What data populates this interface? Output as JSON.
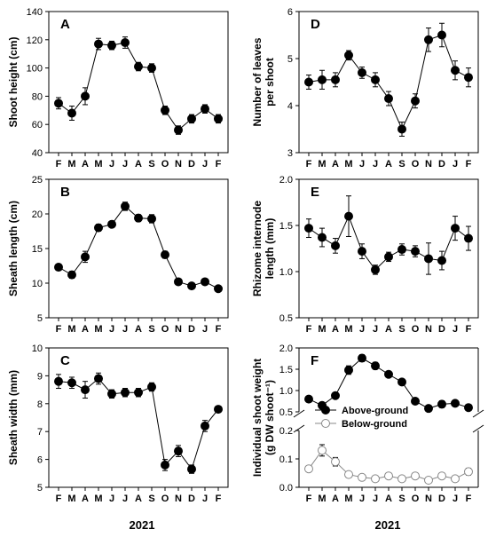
{
  "figure": {
    "year_left": "2021",
    "year_right": "2021"
  },
  "chart_data": [
    {
      "type": "line",
      "panel": "A",
      "ylabel": "Shoot height (cm)",
      "categories": [
        "F",
        "M",
        "A",
        "M",
        "J",
        "J",
        "A",
        "S",
        "O",
        "N",
        "D",
        "J",
        "F"
      ],
      "ylim": [
        40,
        140
      ],
      "yticks": [
        40,
        60,
        80,
        100,
        120,
        140
      ],
      "series": [
        {
          "values": [
            75,
            68,
            80,
            117,
            116,
            118,
            101,
            100,
            70,
            56,
            64,
            71,
            64
          ],
          "errors": [
            4,
            5,
            6,
            4,
            3,
            4,
            3,
            3,
            3,
            3,
            3,
            3,
            3
          ],
          "marker": "filled"
        }
      ]
    },
    {
      "type": "line",
      "panel": "B",
      "ylabel": "Sheath length (cm)",
      "categories": [
        "F",
        "M",
        "A",
        "M",
        "J",
        "J",
        "A",
        "S",
        "O",
        "N",
        "D",
        "J",
        "F"
      ],
      "ylim": [
        5,
        25
      ],
      "yticks": [
        5,
        10,
        15,
        20,
        25
      ],
      "series": [
        {
          "values": [
            12.3,
            11.2,
            13.8,
            18,
            18.5,
            21.1,
            19.4,
            19.3,
            14.1,
            10.2,
            9.6,
            10.2,
            9.2
          ],
          "errors": [
            0.4,
            0.5,
            0.8,
            0.5,
            0.4,
            0.6,
            0.5,
            0.6,
            0.5,
            0.4,
            0.4,
            0.4,
            0.4
          ],
          "marker": "filled"
        }
      ]
    },
    {
      "type": "line",
      "panel": "C",
      "ylabel": "Sheath width (mm)",
      "categories": [
        "F",
        "M",
        "A",
        "M",
        "J",
        "J",
        "A",
        "S",
        "O",
        "N",
        "D",
        "J",
        "F"
      ],
      "ylim": [
        5,
        10
      ],
      "yticks": [
        5,
        6,
        7,
        8,
        9,
        10
      ],
      "series": [
        {
          "values": [
            8.8,
            8.75,
            8.5,
            8.9,
            8.35,
            8.4,
            8.4,
            8.6,
            5.8,
            6.3,
            5.65,
            7.2,
            7.8
          ],
          "errors": [
            0.25,
            0.2,
            0.3,
            0.2,
            0.15,
            0.15,
            0.15,
            0.15,
            0.2,
            0.2,
            0.15,
            0.2,
            0.1
          ],
          "marker": "filled"
        }
      ]
    },
    {
      "type": "line",
      "panel": "D",
      "ylabel": [
        "Number of leaves",
        "per shoot"
      ],
      "categories": [
        "F",
        "M",
        "A",
        "M",
        "J",
        "J",
        "A",
        "S",
        "O",
        "N",
        "D",
        "J",
        "F"
      ],
      "ylim": [
        3,
        6
      ],
      "yticks": [
        3,
        4,
        5,
        6
      ],
      "series": [
        {
          "values": [
            4.5,
            4.55,
            4.55,
            5.07,
            4.7,
            4.55,
            4.15,
            3.5,
            4.1,
            5.4,
            5.5,
            4.75,
            4.6
          ],
          "errors": [
            0.15,
            0.2,
            0.15,
            0.1,
            0.12,
            0.15,
            0.15,
            0.15,
            0.15,
            0.25,
            0.25,
            0.2,
            0.2
          ],
          "marker": "filled"
        }
      ]
    },
    {
      "type": "line",
      "panel": "E",
      "ylabel": [
        "Rhizome internode",
        "length (mm)"
      ],
      "categories": [
        "F",
        "M",
        "A",
        "M",
        "J",
        "J",
        "A",
        "S",
        "O",
        "N",
        "D",
        "J",
        "F"
      ],
      "ylim": [
        0.5,
        2.0
      ],
      "yticks": [
        "0.5",
        "1.0",
        "1.5",
        "2.0"
      ],
      "series": [
        {
          "values": [
            1.47,
            1.37,
            1.28,
            1.6,
            1.22,
            1.02,
            1.16,
            1.24,
            1.22,
            1.14,
            1.12,
            1.47,
            1.36
          ],
          "errors": [
            0.1,
            0.1,
            0.08,
            0.22,
            0.08,
            0.05,
            0.05,
            0.06,
            0.06,
            0.17,
            0.1,
            0.13,
            0.13
          ],
          "marker": "filled"
        }
      ]
    },
    {
      "type": "line",
      "panel": "F",
      "ylabel": [
        "Individual shoot weight",
        "(g DW shoot⁻¹)"
      ],
      "categories": [
        "F",
        "M",
        "A",
        "M",
        "J",
        "J",
        "A",
        "S",
        "O",
        "N",
        "D",
        "J",
        "F"
      ],
      "axis_break": true,
      "upper_ylim": [
        0.5,
        2.0
      ],
      "upper_yticks": [
        "0.5",
        "1.0",
        "1.5",
        "2.0"
      ],
      "lower_ylim": [
        0.0,
        0.2
      ],
      "lower_yticks": [
        "0.0",
        "0.1",
        "0.2"
      ],
      "series": [
        {
          "name": "Above-ground",
          "marker": "filled",
          "values": [
            0.8,
            0.65,
            0.88,
            1.48,
            1.76,
            1.58,
            1.38,
            1.2,
            0.75,
            0.58,
            0.68,
            0.7,
            0.6
          ],
          "errors": [
            0.05,
            0.06,
            0.06,
            0.1,
            0.08,
            0.08,
            0.06,
            0.05,
            0.05,
            0.05,
            0.08,
            0.05,
            0.04
          ]
        },
        {
          "name": "Below-ground",
          "marker": "open",
          "values": [
            0.065,
            0.13,
            0.09,
            0.045,
            0.035,
            0.03,
            0.04,
            0.03,
            0.04,
            0.025,
            0.04,
            0.03,
            0.055
          ],
          "errors": [
            0.01,
            0.02,
            0.015,
            0.01,
            0.008,
            0.006,
            0.008,
            0.006,
            0.008,
            0.006,
            0.008,
            0.006,
            0.012
          ]
        }
      ],
      "legend": "lower-center"
    }
  ]
}
